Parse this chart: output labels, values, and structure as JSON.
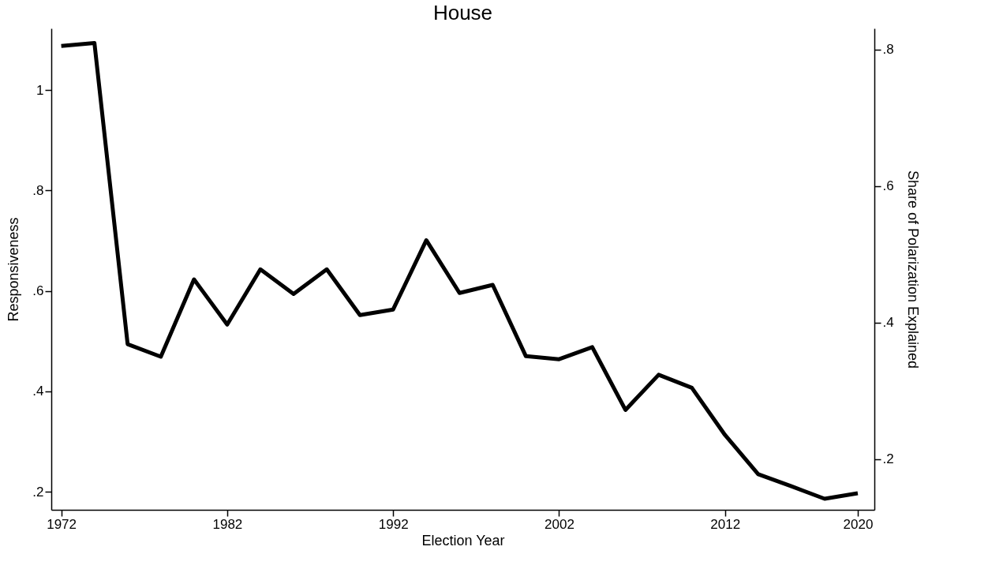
{
  "chart_data": {
    "type": "line",
    "title": "House",
    "xlabel": "Election Year",
    "ylabel": "Responsiveness",
    "y2label": "Share of Polarization Explained",
    "x": [
      1972,
      1974,
      1976,
      1978,
      1980,
      1982,
      1984,
      1986,
      1988,
      1990,
      1992,
      1994,
      1996,
      1998,
      2000,
      2002,
      2004,
      2006,
      2008,
      2010,
      2012,
      2014,
      2016,
      2018,
      2020
    ],
    "series": [
      {
        "color": "#000000",
        "values": [
          1.088,
          1.094,
          0.494,
          0.469,
          0.623,
          0.533,
          0.643,
          0.594,
          0.643,
          0.552,
          0.563,
          0.701,
          0.596,
          0.612,
          0.47,
          0.464,
          0.488,
          0.363,
          0.433,
          0.407,
          0.313,
          0.235,
          0.211,
          0.186,
          0.197
        ]
      }
    ],
    "xlim": [
      1971.4,
      2021
    ],
    "xticks": [
      1972,
      1982,
      1992,
      2002,
      2012,
      2020
    ],
    "ylim": [
      0.164,
      1.123
    ],
    "yticks": [
      {
        "value": 0.2,
        "label": ".2"
      },
      {
        "value": 0.4,
        "label": ".4"
      },
      {
        "value": 0.6,
        "label": ".6"
      },
      {
        "value": 0.8,
        "label": ".8"
      },
      1
    ],
    "y2lim": [
      0.126,
      0.831
    ],
    "y2ticks": [
      {
        "value": 0.2,
        "label": ".2"
      },
      {
        "value": 0.4,
        "label": ".4"
      },
      {
        "value": 0.6,
        "label": ".6"
      },
      {
        "value": 0.8,
        "label": ".8"
      }
    ]
  }
}
